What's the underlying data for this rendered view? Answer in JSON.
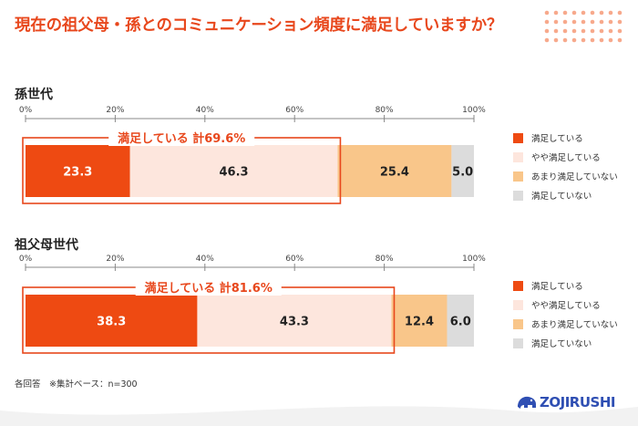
{
  "title": "現在の祖父母・孫とのコミュニケーション頻度に満足していますか？",
  "footnote": "各回答　※集計ベース：n=300",
  "logo_text": "ZOJIRUSHI",
  "colors": {
    "accent": "#e8471c",
    "satisfied": "#ee4a12",
    "somewhat_satisfied": "#fde6dd",
    "not_very_satisfied": "#f9c68a",
    "not_satisfied": "#dcdcdc",
    "logo": "#2f4fb3"
  },
  "chart_data": [
    {
      "type": "bar",
      "orientation": "horizontal",
      "stacked": true,
      "group_title": "孫世代",
      "tick_labels": [
        "0%",
        "20%",
        "40%",
        "60%",
        "80%",
        "100%"
      ],
      "xlim": [
        0,
        100
      ],
      "callout": "満足している  計69.6%",
      "series": [
        {
          "name": "満足している",
          "value": 23.3,
          "label": "23.3"
        },
        {
          "name": "やや満足している",
          "value": 46.3,
          "label": "46.3"
        },
        {
          "name": "あまり満足していない",
          "value": 25.4,
          "label": "25.4"
        },
        {
          "name": "満足していない",
          "value": 5.0,
          "label": "5.0"
        }
      ],
      "legend": [
        "満足している",
        "やや満足している",
        "あまり満足していない",
        "満足していない"
      ],
      "legend_position": "right"
    },
    {
      "type": "bar",
      "orientation": "horizontal",
      "stacked": true,
      "group_title": "祖父母世代",
      "tick_labels": [
        "0%",
        "20%",
        "40%",
        "60%",
        "80%",
        "100%"
      ],
      "xlim": [
        0,
        100
      ],
      "callout": "満足している  計81.6%",
      "series": [
        {
          "name": "満足している",
          "value": 38.3,
          "label": "38.3"
        },
        {
          "name": "やや満足している",
          "value": 43.3,
          "label": "43.3"
        },
        {
          "name": "あまり満足していない",
          "value": 12.4,
          "label": "12.4"
        },
        {
          "name": "満足していない",
          "value": 6.0,
          "label": "6.0"
        }
      ],
      "legend": [
        "満足している",
        "やや満足している",
        "あまり満足していない",
        "満足していない"
      ],
      "legend_position": "right"
    }
  ]
}
